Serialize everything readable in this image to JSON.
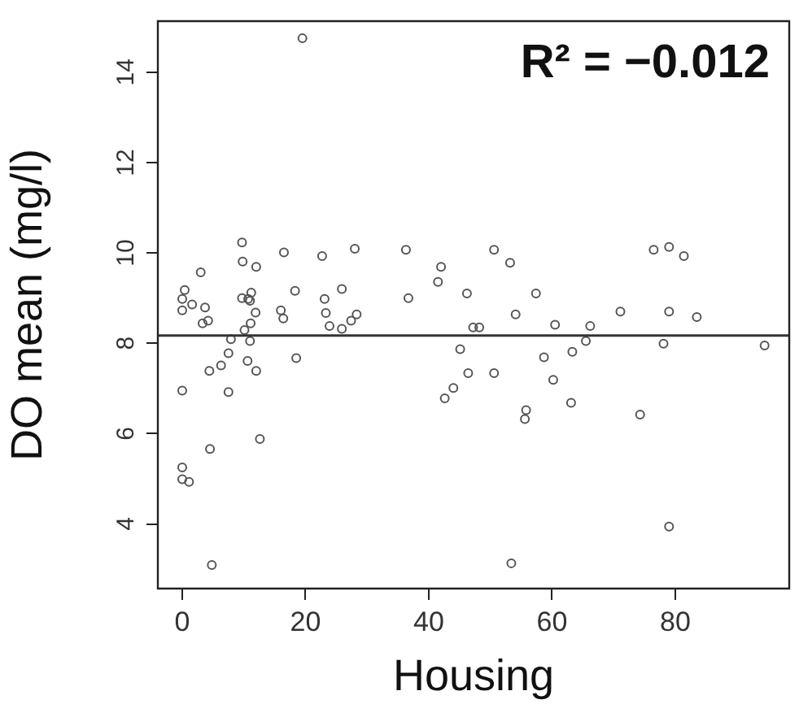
{
  "chart_data": {
    "type": "scatter",
    "xlabel": "Housing",
    "ylabel": "DO mean (mg/l)",
    "annotations": [
      "R² = −0.012"
    ],
    "xlim": [
      -3.96,
      98.5
    ],
    "ylim": [
      2.57,
      15.13
    ],
    "xticks": [
      0,
      20,
      40,
      60,
      80
    ],
    "yticks": [
      4,
      6,
      8,
      10,
      12,
      14
    ],
    "grid": false,
    "marker": "circle",
    "legend": false,
    "ref_lines": [
      {
        "axis": "y",
        "value": 8.17,
        "color": "#333333"
      }
    ],
    "series": [
      {
        "color": "#555555",
        "x": [
          9.7,
          9.8,
          12.0,
          16.5,
          22.7,
          28.0,
          3.0,
          0.4,
          0,
          1.6,
          0,
          3.7,
          3.3,
          4.2,
          9.7,
          10.7,
          11.2,
          11.0,
          11.9,
          11.1,
          10.1,
          7.9,
          11.0,
          7.5,
          10.6,
          12.0,
          6.3,
          4.4,
          18.5,
          16.0,
          16.4,
          18.3,
          23.1,
          25.9,
          23.3,
          23.9,
          25.9,
          27.4,
          28.3,
          0,
          7.5,
          12.6,
          4.5,
          0,
          0,
          1.1,
          4.8,
          19.5,
          36.3,
          42.0,
          41.5,
          36.7,
          46.2,
          50.6,
          53.2,
          57.4,
          54.1,
          47.2,
          48.2,
          60.5,
          45.1,
          46.4,
          50.6,
          44.0,
          42.6,
          58.7,
          60.2,
          55.8,
          55.6,
          53.4,
          76.5,
          79.0,
          81.4,
          71.1,
          79.0,
          83.5,
          66.2,
          65.5,
          78.1,
          94.5,
          63.3,
          63.1,
          74.3,
          79.0
        ],
        "values": [
          10.23,
          9.81,
          9.69,
          10.01,
          9.93,
          10.09,
          9.57,
          9.18,
          8.98,
          8.86,
          8.73,
          8.79,
          8.44,
          8.5,
          9.0,
          8.98,
          9.12,
          8.94,
          8.68,
          8.44,
          8.29,
          8.09,
          8.05,
          7.78,
          7.61,
          7.39,
          7.51,
          7.39,
          7.67,
          8.73,
          8.55,
          9.16,
          8.98,
          9.2,
          8.67,
          8.38,
          8.32,
          8.5,
          8.64,
          6.95,
          6.92,
          5.88,
          5.66,
          5.25,
          4.99,
          4.93,
          3.09,
          14.75,
          10.07,
          9.69,
          9.36,
          9.0,
          9.1,
          10.07,
          9.78,
          9.1,
          8.64,
          8.35,
          8.35,
          8.41,
          7.87,
          7.34,
          7.34,
          7.01,
          6.78,
          7.69,
          7.19,
          6.52,
          6.32,
          3.13,
          10.07,
          10.13,
          9.93,
          8.7,
          8.7,
          8.58,
          8.38,
          8.05,
          7.99,
          7.95,
          7.81,
          6.68,
          6.42,
          3.94
        ]
      }
    ]
  }
}
